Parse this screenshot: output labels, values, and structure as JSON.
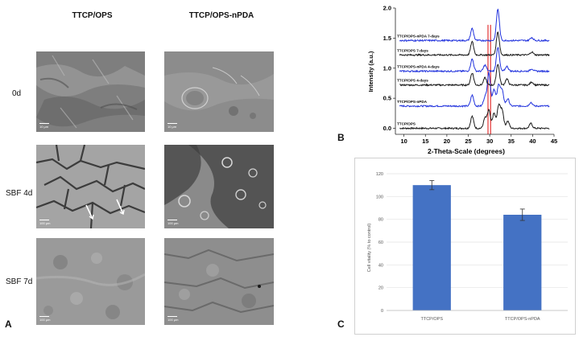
{
  "panel_a": {
    "column_titles": [
      "TTCP/OPS",
      "TTCP/OPS-nPDA"
    ],
    "row_labels": [
      "0d",
      "SBF 4d",
      "SBF 7d"
    ],
    "scale_bars": [
      [
        "10 μm",
        "10 μm"
      ],
      [
        "100 μm",
        "100 μm"
      ],
      [
        "100 μm",
        "100 μm"
      ]
    ],
    "letter": "A"
  },
  "panel_b_letter": "B",
  "panel_c_letter": "C",
  "chart_data": [
    {
      "type": "line",
      "xlabel": "2-Theta-Scale (degrees)",
      "ylabel": "Intensity (a.u.)",
      "xlim": [
        8,
        45
      ],
      "ylim": [
        -0.1,
        2.0
      ],
      "x_ticks": [
        "10",
        "15",
        "20",
        "25",
        "30",
        "35",
        "40",
        "45"
      ],
      "y_ticks": [
        "0.0",
        "0.5",
        "1.0",
        "1.5",
        "2.0"
      ],
      "reference_lines_x": [
        29.6,
        30.2
      ],
      "reference_line_color": "#e02020",
      "series": [
        {
          "name": "TTCP/OPS",
          "color": "#1a1a1a",
          "baseline": 0.0,
          "peaks": [
            [
              25.9,
              0.2
            ],
            [
              28.9,
              0.17
            ],
            [
              29.8,
              0.3
            ],
            [
              31.0,
              0.25
            ],
            [
              32.1,
              0.38
            ],
            [
              32.9,
              0.3
            ],
            [
              34.2,
              0.12
            ],
            [
              39.6,
              0.08
            ]
          ]
        },
        {
          "name": "TTCP/OPS-nPDA",
          "color": "#2233dd",
          "baseline": 0.37,
          "peaks": [
            [
              25.9,
              0.18
            ],
            [
              28.9,
              0.15
            ],
            [
              29.8,
              0.55
            ],
            [
              31.0,
              0.28
            ],
            [
              32.1,
              0.35
            ],
            [
              32.9,
              0.25
            ],
            [
              34.2,
              0.12
            ],
            [
              39.6,
              0.06
            ]
          ]
        },
        {
          "name": "TTCP/OPS 4-days",
          "color": "#1a1a1a",
          "baseline": 0.72,
          "peaks": [
            [
              25.9,
              0.2
            ],
            [
              28.9,
              0.12
            ],
            [
              31.9,
              0.35
            ],
            [
              34.0,
              0.1
            ],
            [
              39.8,
              0.05
            ]
          ]
        },
        {
          "name": "TTCP/OPS-nPDA 4-days",
          "color": "#2233dd",
          "baseline": 0.95,
          "peaks": [
            [
              25.9,
              0.2
            ],
            [
              28.9,
              0.1
            ],
            [
              31.9,
              0.4
            ],
            [
              34.0,
              0.08
            ],
            [
              39.8,
              0.04
            ]
          ]
        },
        {
          "name": "TTCP/OPS 7-days",
          "color": "#1a1a1a",
          "baseline": 1.22,
          "peaks": [
            [
              25.9,
              0.22
            ],
            [
              31.9,
              0.38
            ],
            [
              39.8,
              0.05
            ]
          ]
        },
        {
          "name": "TTCP/OPS-nPDA 7-days",
          "color": "#2233dd",
          "baseline": 1.46,
          "peaks": [
            [
              25.9,
              0.2
            ],
            [
              31.9,
              0.52
            ],
            [
              39.8,
              0.05
            ]
          ]
        }
      ]
    },
    {
      "type": "bar",
      "categories": [
        "TTCP/OPS",
        "TTCP/OPS-nPDA"
      ],
      "values": [
        110,
        84
      ],
      "errors": [
        4,
        5
      ],
      "ylabel": "Cell vitality (% to control)",
      "ylim": [
        0,
        120
      ],
      "y_ticks": [
        "0",
        "20",
        "40",
        "60",
        "80",
        "100",
        "120"
      ],
      "bar_color": "#4472c4"
    }
  ]
}
